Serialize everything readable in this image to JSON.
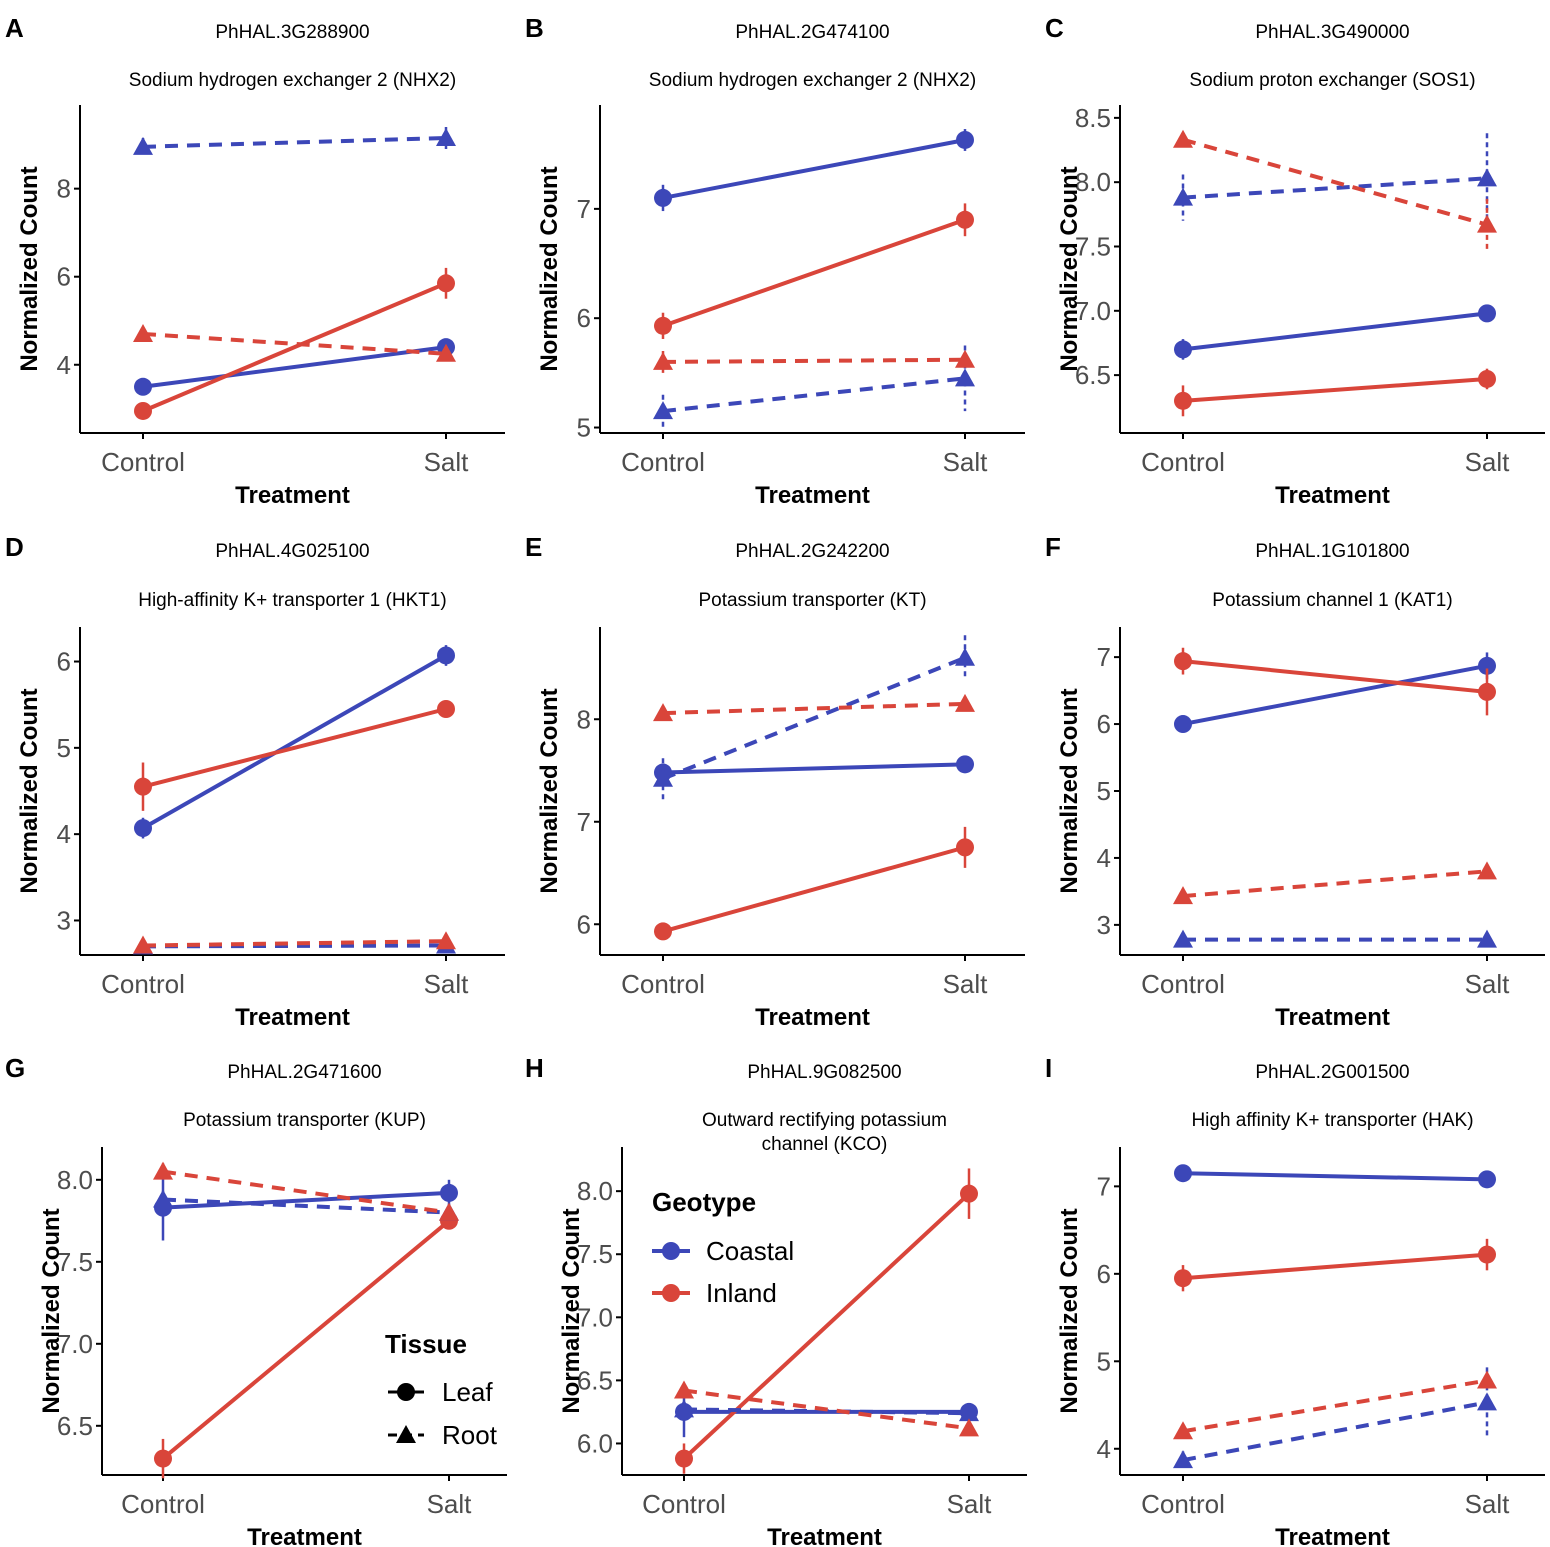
{
  "colors": {
    "coastal": "#3c47b8",
    "inland": "#d9453a",
    "axis": "#000000",
    "tick_text": "#4d4d4d"
  },
  "legend": {
    "geotype_title": "Geotype",
    "geotype_items": [
      "Coastal",
      "Inland"
    ],
    "tissue_title": "Tissue",
    "tissue_items": [
      "Leaf",
      "Root"
    ]
  },
  "chart_data": [
    {
      "panel": "A",
      "type": "line",
      "gene_id": "PhHAL.3G288900",
      "title_lines": [
        "Sodium hydrogen exchanger 2 (NHX2)"
      ],
      "xlabel": "Treatment",
      "ylabel": "Normalized Count",
      "categories": [
        "Control",
        "Salt"
      ],
      "ylim": [
        2.45,
        9.9
      ],
      "yticks": [
        4,
        6,
        8
      ],
      "ytick_labels": [
        "4",
        "6",
        "8"
      ],
      "series": [
        {
          "name": "Coastal Leaf",
          "geotype": "Coastal",
          "tissue": "Leaf",
          "values": [
            3.5,
            4.4
          ],
          "errors": [
            0.05,
            0.05
          ]
        },
        {
          "name": "Inland Leaf",
          "geotype": "Inland",
          "tissue": "Leaf",
          "values": [
            2.95,
            5.85
          ],
          "errors": [
            0.05,
            0.35
          ]
        },
        {
          "name": "Coastal Root",
          "geotype": "Coastal",
          "tissue": "Root",
          "values": [
            8.95,
            9.15
          ],
          "errors": [
            0.2,
            0.25
          ]
        },
        {
          "name": "Inland Root",
          "geotype": "Inland",
          "tissue": "Root",
          "values": [
            4.7,
            4.25
          ],
          "errors": [
            0.05,
            0.1
          ]
        }
      ]
    },
    {
      "panel": "B",
      "type": "line",
      "gene_id": "PhHAL.2G474100",
      "title_lines": [
        "Sodium hydrogen exchanger 2 (NHX2)"
      ],
      "xlabel": "Treatment",
      "ylabel": "Normalized Count",
      "categories": [
        "Control",
        "Salt"
      ],
      "ylim": [
        4.95,
        7.95
      ],
      "yticks": [
        5,
        6,
        7
      ],
      "ytick_labels": [
        "5",
        "6",
        "7"
      ],
      "series": [
        {
          "name": "Coastal Leaf",
          "geotype": "Coastal",
          "tissue": "Leaf",
          "values": [
            7.1,
            7.63
          ],
          "errors": [
            0.12,
            0.1
          ]
        },
        {
          "name": "Inland Leaf",
          "geotype": "Inland",
          "tissue": "Leaf",
          "values": [
            5.93,
            6.9
          ],
          "errors": [
            0.12,
            0.15
          ]
        },
        {
          "name": "Coastal Root",
          "geotype": "Coastal",
          "tissue": "Root",
          "values": [
            5.15,
            5.45
          ],
          "errors": [
            0.15,
            0.3
          ]
        },
        {
          "name": "Inland Root",
          "geotype": "Inland",
          "tissue": "Root",
          "values": [
            5.6,
            5.62
          ],
          "errors": [
            0.1,
            0.05
          ]
        }
      ]
    },
    {
      "panel": "C",
      "type": "line",
      "gene_id": "PhHAL.3G490000",
      "title_lines": [
        "Sodium proton exchanger (SOS1)"
      ],
      "xlabel": "Treatment",
      "ylabel": "Normalized Count",
      "categories": [
        "Control",
        "Salt"
      ],
      "ylim": [
        6.05,
        8.6
      ],
      "yticks": [
        6.5,
        7.0,
        7.5,
        8.0,
        8.5
      ],
      "ytick_labels": [
        "6.5",
        "7.0",
        "7.5",
        "8.0",
        "8.5"
      ],
      "series": [
        {
          "name": "Coastal Leaf",
          "geotype": "Coastal",
          "tissue": "Leaf",
          "values": [
            6.7,
            6.98
          ],
          "errors": [
            0.08,
            0.05
          ]
        },
        {
          "name": "Inland Leaf",
          "geotype": "Inland",
          "tissue": "Leaf",
          "values": [
            6.3,
            6.47
          ],
          "errors": [
            0.12,
            0.08
          ]
        },
        {
          "name": "Coastal Root",
          "geotype": "Coastal",
          "tissue": "Root",
          "values": [
            7.88,
            8.03
          ],
          "errors": [
            0.18,
            0.35
          ]
        },
        {
          "name": "Inland Root",
          "geotype": "Inland",
          "tissue": "Root",
          "values": [
            8.33,
            7.67
          ],
          "errors": [
            0.05,
            0.2
          ]
        }
      ]
    },
    {
      "panel": "D",
      "type": "line",
      "gene_id": "PhHAL.4G025100",
      "title_lines": [
        "High-affinity K+ transporter 1 (HKT1)"
      ],
      "xlabel": "Treatment",
      "ylabel": "Normalized Count",
      "categories": [
        "Control",
        "Salt"
      ],
      "ylim": [
        2.6,
        6.4
      ],
      "yticks": [
        3,
        4,
        5,
        6
      ],
      "ytick_labels": [
        "3",
        "4",
        "5",
        "6"
      ],
      "series": [
        {
          "name": "Coastal Leaf",
          "geotype": "Coastal",
          "tissue": "Leaf",
          "values": [
            4.07,
            6.07
          ],
          "errors": [
            0.12,
            0.12
          ]
        },
        {
          "name": "Inland Leaf",
          "geotype": "Inland",
          "tissue": "Leaf",
          "values": [
            4.55,
            5.45
          ],
          "errors": [
            0.28,
            0.05
          ]
        },
        {
          "name": "Coastal Root",
          "geotype": "Coastal",
          "tissue": "Root",
          "values": [
            2.7,
            2.71
          ],
          "errors": [
            0.02,
            0.02
          ]
        },
        {
          "name": "Inland Root",
          "geotype": "Inland",
          "tissue": "Root",
          "values": [
            2.71,
            2.76
          ],
          "errors": [
            0.02,
            0.03
          ]
        }
      ]
    },
    {
      "panel": "E",
      "type": "line",
      "gene_id": "PhHAL.2G242200",
      "title_lines": [
        "Potassium transporter (KT)"
      ],
      "xlabel": "Treatment",
      "ylabel": "Normalized Count",
      "categories": [
        "Control",
        "Salt"
      ],
      "ylim": [
        5.7,
        8.9
      ],
      "yticks": [
        6,
        7,
        8
      ],
      "ytick_labels": [
        "6",
        "7",
        "8"
      ],
      "series": [
        {
          "name": "Coastal Leaf",
          "geotype": "Coastal",
          "tissue": "Leaf",
          "values": [
            7.48,
            7.56
          ],
          "errors": [
            0.05,
            0.05
          ]
        },
        {
          "name": "Inland Leaf",
          "geotype": "Inland",
          "tissue": "Leaf",
          "values": [
            5.93,
            6.75
          ],
          "errors": [
            0.05,
            0.2
          ]
        },
        {
          "name": "Coastal Root",
          "geotype": "Coastal",
          "tissue": "Root",
          "values": [
            7.42,
            8.6
          ],
          "errors": [
            0.2,
            0.22
          ]
        },
        {
          "name": "Inland Root",
          "geotype": "Inland",
          "tissue": "Root",
          "values": [
            8.06,
            8.15
          ],
          "errors": [
            0.05,
            0.05
          ]
        }
      ]
    },
    {
      "panel": "F",
      "type": "line",
      "gene_id": "PhHAL.1G101800",
      "title_lines": [
        "Potassium channel 1 (KAT1)"
      ],
      "xlabel": "Treatment",
      "ylabel": "Normalized Count",
      "categories": [
        "Control",
        "Salt"
      ],
      "ylim": [
        2.55,
        7.45
      ],
      "yticks": [
        3,
        4,
        5,
        6,
        7
      ],
      "ytick_labels": [
        "3",
        "4",
        "5",
        "6",
        "7"
      ],
      "series": [
        {
          "name": "Coastal Leaf",
          "geotype": "Coastal",
          "tissue": "Leaf",
          "values": [
            6.0,
            6.87
          ],
          "errors": [
            0.05,
            0.2
          ]
        },
        {
          "name": "Inland Leaf",
          "geotype": "Inland",
          "tissue": "Leaf",
          "values": [
            6.94,
            6.48
          ],
          "errors": [
            0.2,
            0.35
          ]
        },
        {
          "name": "Coastal Root",
          "geotype": "Coastal",
          "tissue": "Root",
          "values": [
            2.78,
            2.78
          ],
          "errors": [
            0.02,
            0.02
          ]
        },
        {
          "name": "Inland Root",
          "geotype": "Inland",
          "tissue": "Root",
          "values": [
            3.43,
            3.8
          ],
          "errors": [
            0.05,
            0.05
          ]
        }
      ]
    },
    {
      "panel": "G",
      "type": "line",
      "gene_id": "PhHAL.2G471600",
      "title_lines": [
        "Potassium transporter (KUP)"
      ],
      "xlabel": "Treatment",
      "ylabel": "Normalized Count",
      "categories": [
        "Control",
        "Salt"
      ],
      "ylim": [
        6.2,
        8.2
      ],
      "yticks": [
        6.5,
        7.0,
        7.5,
        8.0
      ],
      "ytick_labels": [
        "6.5",
        "7.0",
        "7.5",
        "8.0"
      ],
      "series": [
        {
          "name": "Coastal Leaf",
          "geotype": "Coastal",
          "tissue": "Leaf",
          "values": [
            7.83,
            7.92
          ],
          "errors": [
            0.2,
            0.08
          ]
        },
        {
          "name": "Inland Leaf",
          "geotype": "Inland",
          "tissue": "Leaf",
          "values": [
            6.3,
            7.75
          ],
          "errors": [
            0.12,
            0.05
          ]
        },
        {
          "name": "Coastal Root",
          "geotype": "Coastal",
          "tissue": "Root",
          "values": [
            7.88,
            7.8
          ],
          "errors": [
            0.05,
            0.05
          ]
        },
        {
          "name": "Inland Root",
          "geotype": "Inland",
          "tissue": "Root",
          "values": [
            8.05,
            7.8
          ],
          "errors": [
            0.05,
            0.05
          ]
        }
      ]
    },
    {
      "panel": "H",
      "type": "line",
      "gene_id": "PhHAL.9G082500",
      "title_lines": [
        "Outward rectifying potassium",
        "channel (KCO)"
      ],
      "xlabel": "Treatment",
      "ylabel": "Normalized Count",
      "categories": [
        "Control",
        "Salt"
      ],
      "ylim": [
        5.75,
        8.35
      ],
      "yticks": [
        6.0,
        6.5,
        7.0,
        7.5,
        8.0
      ],
      "ytick_labels": [
        "6.0",
        "6.5",
        "7.0",
        "7.5",
        "8.0"
      ],
      "series": [
        {
          "name": "Coastal Leaf",
          "geotype": "Coastal",
          "tissue": "Leaf",
          "values": [
            6.25,
            6.25
          ],
          "errors": [
            0.2,
            0.05
          ]
        },
        {
          "name": "Inland Leaf",
          "geotype": "Inland",
          "tissue": "Leaf",
          "values": [
            5.88,
            7.98
          ],
          "errors": [
            0.12,
            0.2
          ]
        },
        {
          "name": "Coastal Root",
          "geotype": "Coastal",
          "tissue": "Root",
          "values": [
            6.27,
            6.24
          ],
          "errors": [
            0.03,
            0.03
          ]
        },
        {
          "name": "Inland Root",
          "geotype": "Inland",
          "tissue": "Root",
          "values": [
            6.42,
            6.12
          ],
          "errors": [
            0.05,
            0.05
          ]
        }
      ]
    },
    {
      "panel": "I",
      "type": "line",
      "gene_id": "PhHAL.2G001500",
      "title_lines": [
        "High affinity K+ transporter (HAK)"
      ],
      "xlabel": "Treatment",
      "ylabel": "Normalized Count",
      "categories": [
        "Control",
        "Salt"
      ],
      "ylim": [
        3.7,
        7.45
      ],
      "yticks": [
        4,
        5,
        6,
        7
      ],
      "ytick_labels": [
        "4",
        "5",
        "6",
        "7"
      ],
      "series": [
        {
          "name": "Coastal Leaf",
          "geotype": "Coastal",
          "tissue": "Leaf",
          "values": [
            7.15,
            7.08
          ],
          "errors": [
            0.1,
            0.08
          ]
        },
        {
          "name": "Inland Leaf",
          "geotype": "Inland",
          "tissue": "Leaf",
          "values": [
            5.95,
            6.22
          ],
          "errors": [
            0.15,
            0.18
          ]
        },
        {
          "name": "Coastal Root",
          "geotype": "Coastal",
          "tissue": "Root",
          "values": [
            3.87,
            4.53
          ],
          "errors": [
            0.1,
            0.4
          ]
        },
        {
          "name": "Inland Root",
          "geotype": "Inland",
          "tissue": "Root",
          "values": [
            4.2,
            4.78
          ],
          "errors": [
            0.05,
            0.05
          ]
        }
      ]
    }
  ]
}
